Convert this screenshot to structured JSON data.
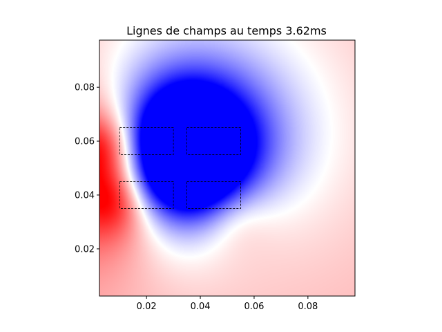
{
  "chart_data": {
    "type": "heatmap",
    "title": "Lignes de champs au temps 3.62ms",
    "xlabel": "",
    "ylabel": "",
    "xlim": [
      0.0025,
      0.0975
    ],
    "ylim": [
      0.0025,
      0.0975
    ],
    "x_ticks": [
      0.02,
      0.04,
      0.06,
      0.08
    ],
    "x_tick_labels": [
      "0.02",
      "0.04",
      "0.06",
      "0.08"
    ],
    "y_ticks": [
      0.02,
      0.04,
      0.06,
      0.08
    ],
    "y_tick_labels": [
      "0.02",
      "0.04",
      "0.06",
      "0.08"
    ],
    "colormap": "bwr",
    "colormap_colors": [
      "#0000ff",
      "#ffffff",
      "#ff0000"
    ],
    "grid": false,
    "field_sources": [
      {
        "x": 0.027,
        "y": 0.06,
        "value": -1.0
      },
      {
        "x": 0.044,
        "y": 0.06,
        "value": -1.0
      },
      {
        "x": 0.025,
        "y": 0.045,
        "value": -0.85
      },
      {
        "x": 0.042,
        "y": 0.045,
        "value": -0.8
      },
      {
        "x": 0.034,
        "y": 0.067,
        "value": -0.6
      },
      {
        "x": 0.005,
        "y": 0.058,
        "value": 1.0
      },
      {
        "x": 0.009,
        "y": 0.038,
        "value": 1.0
      },
      {
        "x": 0.052,
        "y": 0.033,
        "value": 0.55
      }
    ],
    "conductors": [
      {
        "x0": 0.01,
        "x1": 0.03,
        "y0": 0.055,
        "y1": 0.065
      },
      {
        "x0": 0.035,
        "x1": 0.055,
        "y0": 0.055,
        "y1": 0.065
      },
      {
        "x0": 0.01,
        "x1": 0.03,
        "y0": 0.035,
        "y1": 0.045
      },
      {
        "x0": 0.035,
        "x1": 0.055,
        "y0": 0.035,
        "y1": 0.045
      }
    ]
  }
}
